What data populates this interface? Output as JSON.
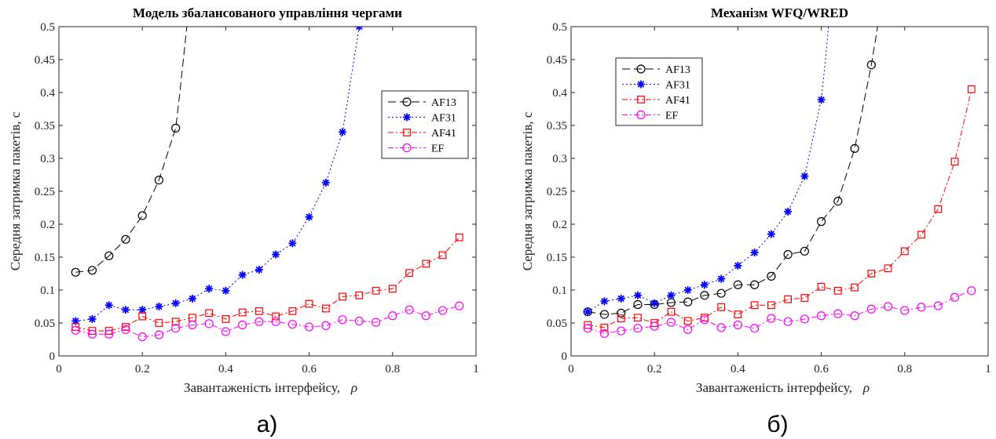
{
  "charts": [
    {
      "type": "line",
      "title": "Модель збалансованого управління чергами",
      "xlabel": "Завантаженість інтерфейсу,",
      "xlabel_symbol": "ρ",
      "ylabel": "Середня затримка пакетів, с",
      "xlim": [
        0,
        1
      ],
      "ylim": [
        0,
        0.5
      ],
      "xticks": [
        "0",
        "0.2",
        "0.4",
        "0.6",
        "0.8",
        "1"
      ],
      "yticks": [
        "0",
        "0.05",
        "0.1",
        "0.15",
        "0.2",
        "0.25",
        "0.3",
        "0.35",
        "0.4",
        "0.45",
        "0.5"
      ],
      "legend_position": "right",
      "caption": "а)",
      "series": [
        {
          "name": "AF13",
          "color": "#000000",
          "marker": "circle",
          "dash": "10,5",
          "x": [
            0.04,
            0.08,
            0.12,
            0.16,
            0.2,
            0.24,
            0.28
          ],
          "y": [
            0.127,
            0.13,
            0.152,
            0.177,
            0.213,
            0.267,
            0.346
          ],
          "tail": [
            [
              0.29,
              0.4
            ],
            [
              0.3,
              0.46
            ],
            [
              0.31,
              0.52
            ]
          ]
        },
        {
          "name": "AF31",
          "color": "#0000ff",
          "marker": "star",
          "dash": "2,3",
          "x": [
            0.04,
            0.08,
            0.12,
            0.16,
            0.2,
            0.24,
            0.28,
            0.32,
            0.36,
            0.4,
            0.44,
            0.48,
            0.52,
            0.56,
            0.6,
            0.64,
            0.68,
            0.72
          ],
          "y": [
            0.053,
            0.056,
            0.077,
            0.07,
            0.07,
            0.075,
            0.08,
            0.087,
            0.102,
            0.099,
            0.123,
            0.131,
            0.154,
            0.171,
            0.211,
            0.263,
            0.34,
            0.5
          ]
        },
        {
          "name": "AF41",
          "color": "#ff0000",
          "marker": "square",
          "dash": "7,3,2,3",
          "x": [
            0.04,
            0.08,
            0.12,
            0.16,
            0.2,
            0.24,
            0.28,
            0.32,
            0.36,
            0.4,
            0.44,
            0.48,
            0.52,
            0.56,
            0.6,
            0.64,
            0.68,
            0.72,
            0.76,
            0.8,
            0.84,
            0.88,
            0.92,
            0.96
          ],
          "y": [
            0.044,
            0.038,
            0.038,
            0.044,
            0.06,
            0.05,
            0.052,
            0.058,
            0.065,
            0.056,
            0.066,
            0.068,
            0.06,
            0.068,
            0.079,
            0.072,
            0.09,
            0.092,
            0.099,
            0.102,
            0.126,
            0.14,
            0.153,
            0.18
          ]
        },
        {
          "name": "EF",
          "color": "#ff00ff",
          "marker": "circle",
          "dash": "7,3,2,3",
          "x": [
            0.04,
            0.08,
            0.12,
            0.16,
            0.2,
            0.24,
            0.28,
            0.32,
            0.36,
            0.4,
            0.44,
            0.48,
            0.52,
            0.56,
            0.6,
            0.64,
            0.68,
            0.72,
            0.76,
            0.8,
            0.84,
            0.88,
            0.92,
            0.96
          ],
          "y": [
            0.039,
            0.033,
            0.033,
            0.04,
            0.029,
            0.032,
            0.042,
            0.047,
            0.049,
            0.037,
            0.047,
            0.052,
            0.052,
            0.048,
            0.044,
            0.046,
            0.055,
            0.053,
            0.051,
            0.061,
            0.07,
            0.061,
            0.069,
            0.076
          ]
        }
      ]
    },
    {
      "type": "line",
      "title": "Механізм WFQ/WRED",
      "xlabel": "Завантаженість інтерфейсу,",
      "xlabel_symbol": "ρ",
      "ylabel": "Середня затримка пакетів, с",
      "xlim": [
        0,
        1
      ],
      "ylim": [
        0,
        0.5
      ],
      "xticks": [
        "0",
        "0.2",
        "0.4",
        "0.6",
        "0.8",
        "1"
      ],
      "yticks": [
        "0",
        "0.05",
        "0.1",
        "0.15",
        "0.2",
        "0.25",
        "0.3",
        "0.35",
        "0.4",
        "0.45",
        "0.5"
      ],
      "legend_position": "top-left",
      "caption": "б)",
      "series": [
        {
          "name": "AF13",
          "color": "#000000",
          "marker": "circle",
          "dash": "10,5",
          "x": [
            0.04,
            0.08,
            0.12,
            0.16,
            0.2,
            0.24,
            0.28,
            0.32,
            0.36,
            0.4,
            0.44,
            0.48,
            0.52,
            0.56,
            0.6,
            0.64,
            0.68,
            0.72
          ],
          "y": [
            0.067,
            0.063,
            0.065,
            0.078,
            0.078,
            0.081,
            0.082,
            0.092,
            0.095,
            0.108,
            0.108,
            0.121,
            0.154,
            0.159,
            0.204,
            0.235,
            0.315,
            0.442
          ],
          "tail": [
            [
              0.73,
              0.48
            ],
            [
              0.74,
              0.52
            ]
          ]
        },
        {
          "name": "AF31",
          "color": "#0000ff",
          "marker": "star",
          "dash": "2,3",
          "x": [
            0.04,
            0.08,
            0.12,
            0.16,
            0.2,
            0.24,
            0.28,
            0.32,
            0.36,
            0.4,
            0.44,
            0.48,
            0.52,
            0.56,
            0.6
          ],
          "y": [
            0.067,
            0.083,
            0.087,
            0.092,
            0.08,
            0.092,
            0.1,
            0.108,
            0.117,
            0.137,
            0.157,
            0.185,
            0.219,
            0.273,
            0.389
          ],
          "tail": [
            [
              0.61,
              0.45
            ],
            [
              0.62,
              0.52
            ]
          ]
        },
        {
          "name": "AF41",
          "color": "#ff0000",
          "marker": "square",
          "dash": "7,3,2,3",
          "x": [
            0.04,
            0.08,
            0.12,
            0.16,
            0.2,
            0.24,
            0.28,
            0.32,
            0.36,
            0.4,
            0.44,
            0.48,
            0.52,
            0.56,
            0.6,
            0.64,
            0.68,
            0.72,
            0.76,
            0.8,
            0.84,
            0.88,
            0.92,
            0.96
          ],
          "y": [
            0.047,
            0.043,
            0.057,
            0.058,
            0.05,
            0.067,
            0.053,
            0.058,
            0.074,
            0.063,
            0.077,
            0.077,
            0.086,
            0.088,
            0.105,
            0.099,
            0.104,
            0.125,
            0.133,
            0.159,
            0.184,
            0.223,
            0.295,
            0.405
          ]
        },
        {
          "name": "EF",
          "color": "#ff00ff",
          "marker": "circle",
          "dash": "7,3,2,3",
          "x": [
            0.04,
            0.08,
            0.12,
            0.16,
            0.2,
            0.24,
            0.28,
            0.32,
            0.36,
            0.4,
            0.44,
            0.48,
            0.52,
            0.56,
            0.6,
            0.64,
            0.68,
            0.72,
            0.76,
            0.8,
            0.84,
            0.88,
            0.92,
            0.96
          ],
          "y": [
            0.042,
            0.034,
            0.038,
            0.042,
            0.045,
            0.051,
            0.04,
            0.055,
            0.043,
            0.047,
            0.042,
            0.057,
            0.052,
            0.056,
            0.061,
            0.064,
            0.061,
            0.071,
            0.075,
            0.069,
            0.074,
            0.076,
            0.089,
            0.099
          ]
        }
      ]
    }
  ]
}
